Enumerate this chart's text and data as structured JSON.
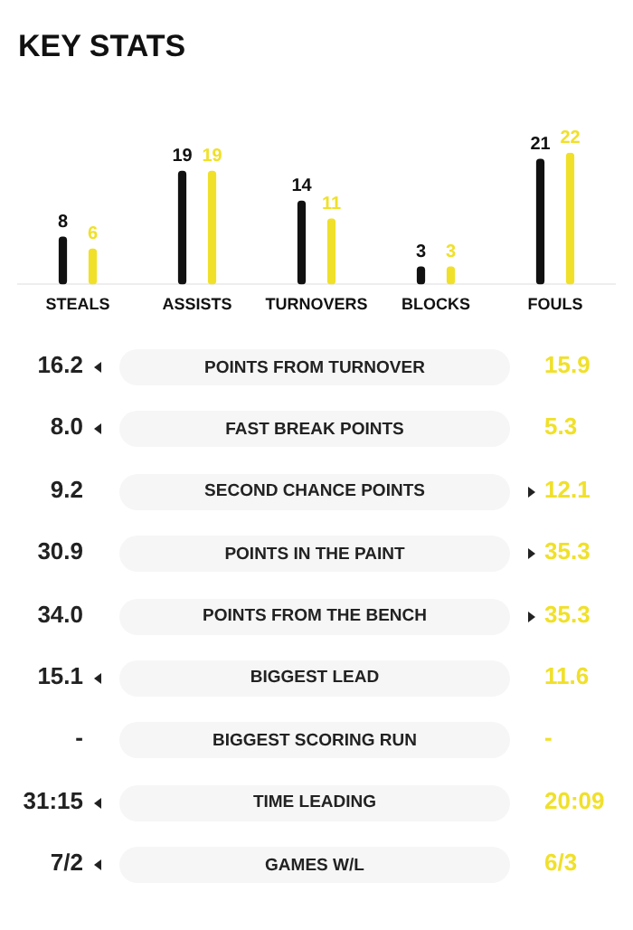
{
  "chart_data": [
    {
      "type": "bar",
      "title": "KEY STATS",
      "categories": [
        "STEALS",
        "ASSISTS",
        "TURNOVERS",
        "BLOCKS",
        "FOULS"
      ],
      "series": [
        {
          "color": "#111111",
          "values": [
            8,
            19,
            14,
            3,
            21
          ]
        },
        {
          "color": "#f0e02a",
          "values": [
            6,
            19,
            11,
            3,
            22
          ]
        }
      ],
      "ylim": [
        0,
        22
      ],
      "data_labels": true,
      "legend": false,
      "grid": false
    },
    {
      "type": "other",
      "annotations": [
        "16.2",
        "POINTS FROM TURNOVER",
        "15.9",
        "8.0",
        "FAST BREAK POINTS",
        "5.3",
        "9.2",
        "SECOND CHANCE POINTS",
        "12.1",
        "30.9",
        "POINTS IN THE PAINT",
        "35.3",
        "34.0",
        "POINTS FROM THE BENCH",
        "35.3",
        "15.1",
        "BIGGEST LEAD",
        "11.6",
        "-",
        "BIGGEST SCORING RUN",
        "-",
        "31:15",
        "TIME LEADING",
        "20:09",
        "7/2",
        "GAMES W/L",
        "6/3"
      ]
    }
  ]
}
